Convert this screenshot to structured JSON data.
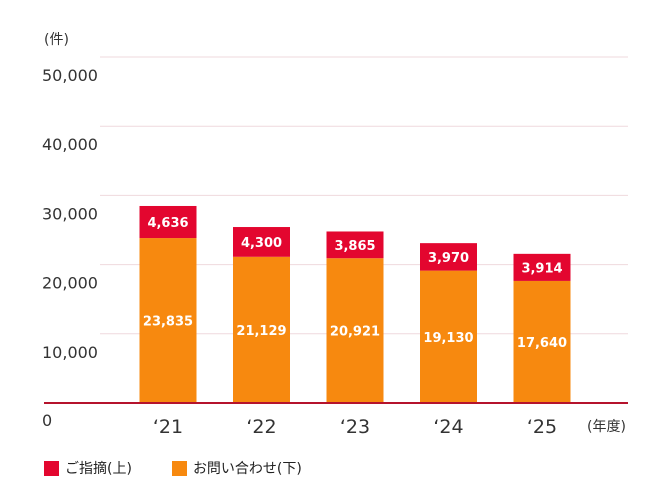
{
  "chart_data": {
    "type": "bar",
    "stacked": true,
    "categories": [
      "‘21",
      "‘22",
      "‘23",
      "‘24",
      "‘25"
    ],
    "series": [
      {
        "name": "お問い合わせ(下)",
        "color": "#f7890f",
        "values": [
          23835,
          21129,
          20921,
          19130,
          17640
        ],
        "labels": [
          "23,835",
          "21,129",
          "20,921",
          "19,130",
          "17,640"
        ]
      },
      {
        "name": "ご指摘(上)",
        "color": "#e3062f",
        "values": [
          4636,
          4300,
          3865,
          3970,
          3914
        ],
        "labels": [
          "4,636",
          "4,300",
          "3,865",
          "3,970",
          "3,914"
        ]
      }
    ],
    "yunit": "(件)",
    "xunit": "(年度)",
    "yticks": [
      0,
      10000,
      20000,
      30000,
      40000,
      50000
    ],
    "ytick_labels": [
      "0",
      "10,000",
      "20,000",
      "30,000",
      "40,000",
      "50,000"
    ],
    "ylim": [
      0,
      50000
    ],
    "grid": true,
    "legend_position": "bottom-left"
  }
}
